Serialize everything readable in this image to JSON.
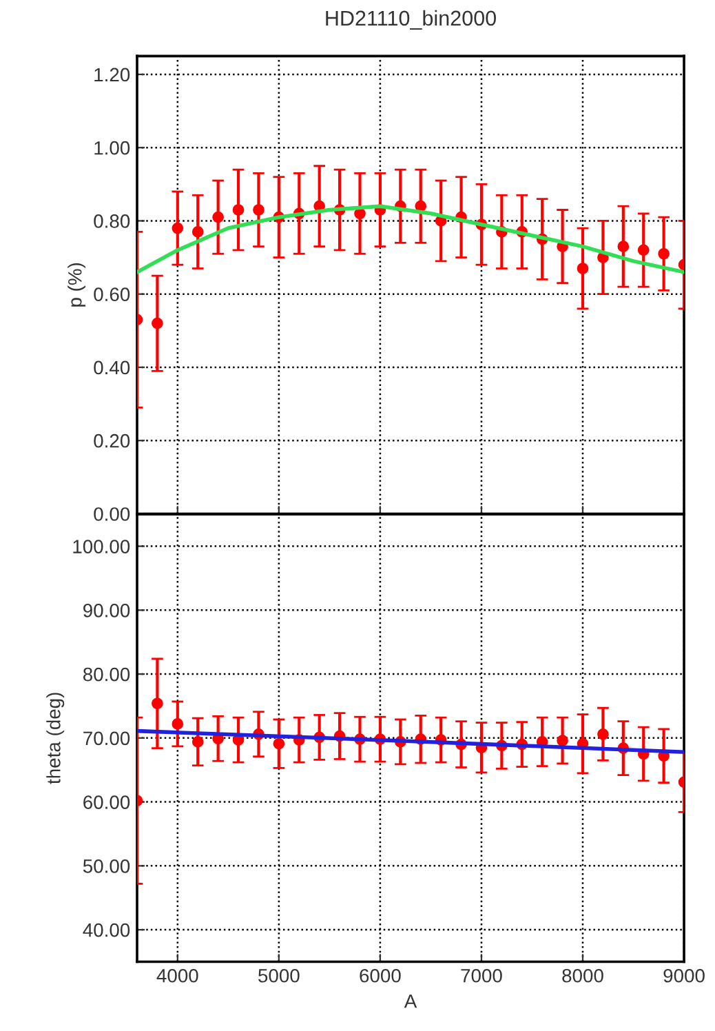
{
  "chart_data": [
    {
      "type": "scatter",
      "title": "HD21110_bin2000",
      "ylabel": "p (%)",
      "xlim": [
        3600,
        9000
      ],
      "xticks": [
        4000,
        5000,
        6000,
        7000,
        8000,
        9000
      ],
      "ylim": [
        0,
        1.25
      ],
      "yticks": [
        {
          "value": 0,
          "label": "0.00"
        },
        {
          "value": 0.2,
          "label": "0.20"
        },
        {
          "value": 0.4,
          "label": "0.40"
        },
        {
          "value": 0.6,
          "label": "0.60"
        },
        {
          "value": 0.8,
          "label": "0.80"
        },
        {
          "value": 1.0,
          "label": "1.00"
        },
        {
          "value": 1.2,
          "label": "1.20"
        }
      ],
      "grid": true,
      "tick_labels": "y",
      "series": [
        {
          "marker": "circle",
          "color": "#ff0000",
          "x": [
            3600,
            3800,
            4000,
            4200,
            4400,
            4600,
            4800,
            5000,
            5200,
            5400,
            5600,
            5800,
            6000,
            6200,
            6400,
            6600,
            6800,
            7000,
            7200,
            7400,
            7600,
            7800,
            8000,
            8200,
            8400,
            8600,
            8800,
            9000
          ],
          "values": [
            0.53,
            0.52,
            0.78,
            0.77,
            0.81,
            0.83,
            0.83,
            0.81,
            0.82,
            0.84,
            0.83,
            0.82,
            0.83,
            0.84,
            0.84,
            0.8,
            0.81,
            0.79,
            0.77,
            0.77,
            0.75,
            0.73,
            0.67,
            0.7,
            0.73,
            0.72,
            0.71,
            0.68
          ],
          "errors": [
            0.24,
            0.13,
            0.1,
            0.1,
            0.1,
            0.11,
            0.1,
            0.11,
            0.11,
            0.11,
            0.11,
            0.11,
            0.1,
            0.1,
            0.1,
            0.11,
            0.11,
            0.11,
            0.1,
            0.1,
            0.11,
            0.1,
            0.11,
            0.1,
            0.11,
            0.1,
            0.1,
            0.12
          ]
        },
        {
          "type": "line",
          "color": "#33dd55",
          "x": [
            3600,
            4000,
            4500,
            5000,
            5500,
            6000,
            6500,
            7000,
            7500,
            8000,
            8500,
            9000
          ],
          "values": [
            0.66,
            0.72,
            0.78,
            0.81,
            0.83,
            0.84,
            0.82,
            0.79,
            0.76,
            0.73,
            0.69,
            0.66
          ]
        }
      ]
    },
    {
      "type": "scatter",
      "xlabel": "A",
      "ylabel": "theta (deg)",
      "xlim": [
        3600,
        9000
      ],
      "xticks": [
        4000,
        5000,
        6000,
        7000,
        8000,
        9000
      ],
      "ylim": [
        35,
        105
      ],
      "yticks": [
        {
          "value": 40,
          "label": "40.00"
        },
        {
          "value": 50,
          "label": "50.00"
        },
        {
          "value": 60,
          "label": "60.00"
        },
        {
          "value": 70,
          "label": "70.00"
        },
        {
          "value": 80,
          "label": "80.00"
        },
        {
          "value": 90,
          "label": "90.00"
        },
        {
          "value": 100,
          "label": "100.00"
        }
      ],
      "grid": true,
      "series": [
        {
          "marker": "circle",
          "color": "#ff0000",
          "x": [
            3600,
            3800,
            4000,
            4200,
            4400,
            4600,
            4800,
            5000,
            5200,
            5400,
            5600,
            5800,
            6000,
            6200,
            6400,
            6600,
            6800,
            7000,
            7200,
            7400,
            7600,
            7800,
            8000,
            8200,
            8400,
            8600,
            8800,
            9000
          ],
          "values": [
            60.2,
            75.4,
            72.2,
            69.4,
            69.9,
            69.7,
            70.6,
            69.1,
            69.7,
            70.1,
            70.3,
            69.8,
            69.8,
            69.4,
            69.8,
            69.7,
            69.0,
            68.5,
            68.8,
            69.0,
            69.4,
            69.6,
            69.1,
            70.6,
            68.4,
            67.5,
            67.2,
            63.1
          ],
          "errors": [
            13,
            7,
            3.5,
            3.7,
            3.5,
            3.5,
            3.5,
            3.8,
            3.5,
            3.5,
            3.6,
            3.5,
            3.5,
            3.5,
            3.7,
            3.5,
            3.6,
            3.9,
            3.6,
            3.5,
            3.8,
            3.6,
            4.6,
            4.1,
            4.2,
            4.2,
            4.2,
            4.7
          ]
        },
        {
          "type": "line",
          "color": "#2222dd",
          "x": [
            3600,
            6300,
            9000
          ],
          "values": [
            71.1,
            69.5,
            67.8
          ]
        }
      ]
    }
  ]
}
